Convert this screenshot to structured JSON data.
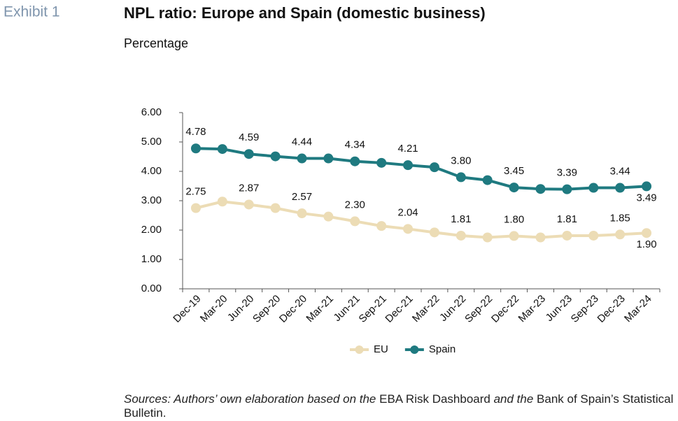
{
  "exhibit": "Exhibit 1",
  "chart_data": {
    "type": "line",
    "title": "NPL ratio: Europe and Spain (domestic business)",
    "subtitle": "Percentage",
    "categories": [
      "Dec-19",
      "Mar-20",
      "Jun-20",
      "Sep-20",
      "Dec-20",
      "Mar-21",
      "Jun-21",
      "Sep-21",
      "Dec-21",
      "Mar-22",
      "Jun-22",
      "Sep-22",
      "Dec-22",
      "Mar-23",
      "Jun-23",
      "Sep-23",
      "Dec-23",
      "Mar-24"
    ],
    "series": [
      {
        "name": "EU",
        "color": "#ecdcb5",
        "values": [
          2.75,
          2.97,
          2.87,
          2.75,
          2.57,
          2.46,
          2.3,
          2.14,
          2.04,
          1.92,
          1.81,
          1.75,
          1.8,
          1.75,
          1.81,
          1.81,
          1.85,
          1.9
        ],
        "value_labels": [
          "2.75",
          null,
          "2.87",
          null,
          "2.57",
          null,
          "2.30",
          null,
          "2.04",
          null,
          "1.81",
          null,
          "1.80",
          null,
          "1.81",
          null,
          "1.85",
          "1.90"
        ]
      },
      {
        "name": "Spain",
        "color": "#1f7a80",
        "values": [
          4.78,
          4.76,
          4.59,
          4.51,
          4.44,
          4.44,
          4.34,
          4.29,
          4.21,
          4.14,
          3.8,
          3.7,
          3.45,
          3.4,
          3.39,
          3.44,
          3.44,
          3.49
        ],
        "value_labels": [
          "4.78",
          null,
          "4.59",
          null,
          "4.44",
          null,
          "4.34",
          null,
          "4.21",
          null,
          "3.80",
          null,
          "3.45",
          null,
          "3.39",
          null,
          "3.44",
          "3.49"
        ]
      }
    ],
    "ylim": [
      0,
      6
    ],
    "yticks": [
      {
        "value": 0,
        "label": "0.00"
      },
      {
        "value": 1,
        "label": "1.00"
      },
      {
        "value": 2,
        "label": "2.00"
      },
      {
        "value": 3,
        "label": "3.00"
      },
      {
        "value": 4,
        "label": "4.00"
      },
      {
        "value": 5,
        "label": "5.00"
      },
      {
        "value": 6,
        "label": "6.00"
      }
    ],
    "grid": false,
    "legend": "bottom"
  },
  "source": [
    {
      "text": "Sources: Authors’ own elaboration based on the ",
      "italic": true
    },
    {
      "text": "EBA Risk Dashboard",
      "italic": false
    },
    {
      "text": " and the ",
      "italic": true
    },
    {
      "text": "Bank of Spain’s Statistical Bulletin.",
      "italic": false
    }
  ]
}
